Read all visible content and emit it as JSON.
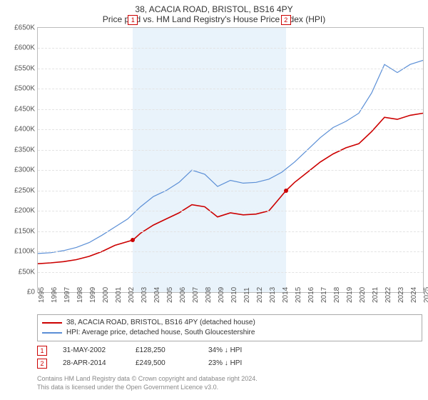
{
  "title": "38, ACACIA ROAD, BRISTOL, BS16 4PY",
  "subtitle": "Price paid vs. HM Land Registry's House Price Index (HPI)",
  "chart": {
    "type": "line",
    "background_color": "#ffffff",
    "grid_color": "#e3e3e3",
    "border_color": "#bbbbbb",
    "highlight_band_color": "#e9f3fb",
    "y": {
      "min": 0,
      "max": 650000,
      "step": 50000,
      "prefix": "£",
      "suffix": "K",
      "labels": [
        "£0",
        "£50K",
        "£100K",
        "£150K",
        "£200K",
        "£250K",
        "£300K",
        "£350K",
        "£400K",
        "£450K",
        "£500K",
        "£550K",
        "£600K",
        "£650K"
      ]
    },
    "x": {
      "min": 1995,
      "max": 2025,
      "step": 1,
      "labels": [
        "1995",
        "1996",
        "1997",
        "1998",
        "1999",
        "2000",
        "2001",
        "2002",
        "2003",
        "2004",
        "2005",
        "2006",
        "2007",
        "2008",
        "2009",
        "2010",
        "2011",
        "2012",
        "2013",
        "2014",
        "2015",
        "2016",
        "2017",
        "2018",
        "2019",
        "2020",
        "2021",
        "2022",
        "2023",
        "2024",
        "2025"
      ]
    },
    "highlight_band": {
      "from": 2002.41,
      "to": 2014.32
    },
    "series": [
      {
        "name": "property",
        "color": "#cc0000",
        "width": 1.6,
        "data": [
          [
            1995,
            70000
          ],
          [
            1996,
            72000
          ],
          [
            1997,
            75000
          ],
          [
            1998,
            80000
          ],
          [
            1999,
            88000
          ],
          [
            2000,
            100000
          ],
          [
            2001,
            115000
          ],
          [
            2002.41,
            128250
          ],
          [
            2003,
            145000
          ],
          [
            2004,
            165000
          ],
          [
            2005,
            180000
          ],
          [
            2006,
            195000
          ],
          [
            2007,
            215000
          ],
          [
            2008,
            210000
          ],
          [
            2009,
            185000
          ],
          [
            2010,
            195000
          ],
          [
            2011,
            190000
          ],
          [
            2012,
            192000
          ],
          [
            2013,
            200000
          ],
          [
            2014.32,
            249500
          ],
          [
            2015,
            270000
          ],
          [
            2016,
            295000
          ],
          [
            2017,
            320000
          ],
          [
            2018,
            340000
          ],
          [
            2019,
            355000
          ],
          [
            2020,
            365000
          ],
          [
            2021,
            395000
          ],
          [
            2022,
            430000
          ],
          [
            2023,
            425000
          ],
          [
            2024,
            435000
          ],
          [
            2025,
            440000
          ]
        ]
      },
      {
        "name": "hpi",
        "color": "#5b8fd6",
        "width": 1.2,
        "data": [
          [
            1995,
            95000
          ],
          [
            1996,
            97000
          ],
          [
            1997,
            102000
          ],
          [
            1998,
            110000
          ],
          [
            1999,
            122000
          ],
          [
            2000,
            140000
          ],
          [
            2001,
            160000
          ],
          [
            2002,
            180000
          ],
          [
            2003,
            210000
          ],
          [
            2004,
            235000
          ],
          [
            2005,
            250000
          ],
          [
            2006,
            270000
          ],
          [
            2007,
            300000
          ],
          [
            2008,
            290000
          ],
          [
            2009,
            260000
          ],
          [
            2010,
            275000
          ],
          [
            2011,
            268000
          ],
          [
            2012,
            270000
          ],
          [
            2013,
            278000
          ],
          [
            2014,
            295000
          ],
          [
            2015,
            320000
          ],
          [
            2016,
            350000
          ],
          [
            2017,
            380000
          ],
          [
            2018,
            405000
          ],
          [
            2019,
            420000
          ],
          [
            2020,
            440000
          ],
          [
            2021,
            490000
          ],
          [
            2022,
            560000
          ],
          [
            2023,
            540000
          ],
          [
            2024,
            560000
          ],
          [
            2025,
            570000
          ]
        ]
      }
    ],
    "sale_points": [
      {
        "n": "1",
        "x": 2002.41,
        "y": 128250
      },
      {
        "n": "2",
        "x": 2014.32,
        "y": 249500
      }
    ],
    "title_fontsize": 12,
    "label_fontsize": 10
  },
  "legend": {
    "items": [
      {
        "color": "#cc0000",
        "label": "38, ACACIA ROAD, BRISTOL, BS16 4PY (detached house)"
      },
      {
        "color": "#5b8fd6",
        "label": "HPI: Average price, detached house, South Gloucestershire"
      }
    ]
  },
  "sales": [
    {
      "n": "1",
      "date": "31-MAY-2002",
      "price": "£128,250",
      "delta": "34% ↓ HPI"
    },
    {
      "n": "2",
      "date": "28-APR-2014",
      "price": "£249,500",
      "delta": "23% ↓ HPI"
    }
  ],
  "footer": {
    "l1": "Contains HM Land Registry data © Crown copyright and database right 2024.",
    "l2": "This data is licensed under the Open Government Licence v3.0."
  }
}
